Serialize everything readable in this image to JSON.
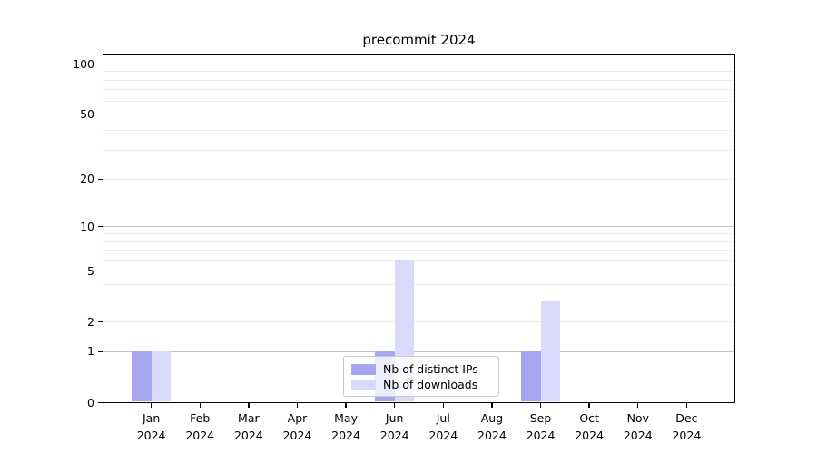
{
  "title": "precommit 2024",
  "chart_data": {
    "type": "bar",
    "categories": [
      "Jan",
      "Feb",
      "Mar",
      "Apr",
      "May",
      "Jun",
      "Jul",
      "Aug",
      "Sep",
      "Oct",
      "Nov",
      "Dec"
    ],
    "category_year": "2024",
    "series": [
      {
        "name": "Nb of distinct IPs",
        "color": "#a6a6f2",
        "values": [
          1,
          0,
          0,
          0,
          0,
          1,
          0,
          0,
          1,
          0,
          0,
          0
        ]
      },
      {
        "name": "Nb of downloads",
        "color": "#d9d9fa",
        "values": [
          1,
          0,
          0,
          0,
          0,
          6,
          0,
          0,
          3,
          0,
          0,
          0
        ]
      }
    ],
    "yscale": "log1p",
    "ylim": [
      0,
      113
    ],
    "y_tick_labels": [
      0,
      1,
      2,
      5,
      10,
      20,
      50,
      100
    ],
    "y_major_gridlines": [
      1,
      10,
      100
    ],
    "y_minor_gridlines": [
      2,
      3,
      4,
      5,
      6,
      7,
      8,
      9,
      20,
      30,
      40,
      50,
      60,
      70,
      80,
      90
    ],
    "grid": true,
    "legend_position": "lower center",
    "axis_color": "#000000",
    "major_grid_color": "#c4c4c4",
    "minor_grid_color": "#ececec"
  }
}
